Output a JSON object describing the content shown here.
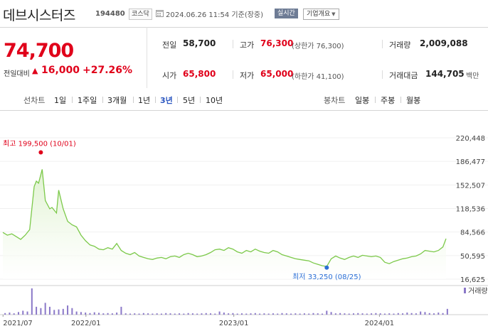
{
  "header": {
    "name": "데브시스터즈",
    "code": "194480",
    "market": "코스닥",
    "datetime": "2024.06.26 11:54 기준(장중)",
    "realtime": "실시간",
    "company_btn": "기업개요"
  },
  "quote": {
    "price": "74,700",
    "change_label": "전일대비",
    "change_arrow": "▲",
    "change_amount": "16,000",
    "change_pct": "+27.26%",
    "prev_close": {
      "label": "전일",
      "value": "58,700"
    },
    "high": {
      "label": "고가",
      "value": "76,300",
      "sub": "(상한가 76,300)"
    },
    "volume": {
      "label": "거래량",
      "value": "2,009,088"
    },
    "open": {
      "label": "시가",
      "value": "65,800"
    },
    "low": {
      "label": "저가",
      "value": "65,000",
      "sub": "(하한가 41,100)"
    },
    "amount": {
      "label": "거래대금",
      "value": "144,705",
      "unit": "백만"
    }
  },
  "tabs": {
    "line_label": "선차트",
    "line": [
      "1일",
      "1주일",
      "3개월",
      "1년",
      "3년",
      "5년",
      "10년"
    ],
    "active": "3년",
    "candle_label": "봉차트",
    "candle": [
      "일봉",
      "주봉",
      "월봉"
    ]
  },
  "colors": {
    "up": "#e0001a",
    "line": "#7cc94a",
    "fill": "#dff2cf",
    "volume": "#8a78c8",
    "low_marker": "#2b6fd6"
  },
  "chart_data": {
    "type": "area",
    "y_ticks": [
      "220,448",
      "186,477",
      "152,507",
      "118,536",
      "84,566",
      "50,595",
      "16,625"
    ],
    "ylim": [
      16625,
      220448
    ],
    "x_ticks": [
      "2021/07",
      "2022/01",
      "2023/01",
      "2024/01"
    ],
    "x_tick_positions": [
      0.04,
      18.6,
      51.7,
      84.3
    ],
    "max_label": "최고 199,500 (10/01)",
    "min_label": "최저 33,250 (08/25)",
    "max_point": {
      "t": 8.5,
      "v": 199500
    },
    "min_point": {
      "t": 72.5,
      "v": 33250
    },
    "series": [
      {
        "values": [
          [
            0,
            84000
          ],
          [
            1,
            80000
          ],
          [
            2,
            82000
          ],
          [
            3,
            78000
          ],
          [
            4,
            74000
          ],
          [
            5,
            80000
          ],
          [
            6,
            88000
          ],
          [
            7,
            150000
          ],
          [
            7.5,
            158000
          ],
          [
            8,
            155000
          ],
          [
            8.8,
            175000
          ],
          [
            9.5,
            130000
          ],
          [
            10.5,
            118000
          ],
          [
            11,
            120000
          ],
          [
            12,
            112000
          ],
          [
            12.5,
            145000
          ],
          [
            13.5,
            118000
          ],
          [
            14.5,
            100000
          ],
          [
            15.5,
            95000
          ],
          [
            16.5,
            92000
          ],
          [
            17.5,
            80000
          ],
          [
            18.5,
            72000
          ],
          [
            19.5,
            66000
          ],
          [
            20.5,
            64000
          ],
          [
            21.5,
            60000
          ],
          [
            22.5,
            59000
          ],
          [
            23.5,
            62000
          ],
          [
            24.5,
            60000
          ],
          [
            25.5,
            68000
          ],
          [
            26.5,
            58000
          ],
          [
            27.5,
            54000
          ],
          [
            28.5,
            52000
          ],
          [
            29.5,
            55000
          ],
          [
            30.5,
            50000
          ],
          [
            31.5,
            48000
          ],
          [
            32.5,
            46000
          ],
          [
            33.5,
            45000
          ],
          [
            34.5,
            47000
          ],
          [
            35.5,
            48000
          ],
          [
            36.5,
            46000
          ],
          [
            37.5,
            49000
          ],
          [
            38.5,
            50000
          ],
          [
            39.5,
            48000
          ],
          [
            40.5,
            52000
          ],
          [
            41.5,
            54000
          ],
          [
            42.5,
            52000
          ],
          [
            43.5,
            49000
          ],
          [
            44.5,
            50000
          ],
          [
            45.5,
            52000
          ],
          [
            46.5,
            55000
          ],
          [
            47.5,
            59000
          ],
          [
            48.5,
            60000
          ],
          [
            49.5,
            58000
          ],
          [
            50.5,
            62000
          ],
          [
            51.5,
            60000
          ],
          [
            52.5,
            56000
          ],
          [
            53.5,
            54000
          ],
          [
            54.5,
            58000
          ],
          [
            55.5,
            56000
          ],
          [
            56.5,
            60000
          ],
          [
            57.5,
            57000
          ],
          [
            58.5,
            55000
          ],
          [
            59.5,
            54000
          ],
          [
            60.5,
            58000
          ],
          [
            61.5,
            56000
          ],
          [
            62.5,
            52000
          ],
          [
            63.5,
            50000
          ],
          [
            64.5,
            48000
          ],
          [
            65.5,
            46000
          ],
          [
            66.5,
            45000
          ],
          [
            67.5,
            44000
          ],
          [
            68.5,
            43000
          ],
          [
            69.5,
            40000
          ],
          [
            70.5,
            38000
          ],
          [
            71.5,
            36000
          ],
          [
            72.5,
            35000
          ],
          [
            73.5,
            46000
          ],
          [
            74.5,
            50000
          ],
          [
            75.5,
            47000
          ],
          [
            76.5,
            45000
          ],
          [
            77.5,
            48000
          ],
          [
            78.5,
            50000
          ],
          [
            79.5,
            48000
          ],
          [
            80.5,
            51000
          ],
          [
            81.5,
            50000
          ],
          [
            82.5,
            49000
          ],
          [
            83.5,
            50000
          ],
          [
            84.5,
            48000
          ],
          [
            85.5,
            41000
          ],
          [
            86.5,
            39000
          ],
          [
            87.5,
            42000
          ],
          [
            88.5,
            44000
          ],
          [
            89.5,
            46000
          ],
          [
            90.5,
            47000
          ],
          [
            91.5,
            49000
          ],
          [
            92.5,
            50000
          ],
          [
            93.5,
            53000
          ],
          [
            94.5,
            58000
          ],
          [
            95.5,
            57000
          ],
          [
            96.5,
            56000
          ],
          [
            97.5,
            58000
          ],
          [
            98.5,
            63000
          ],
          [
            99.2,
            75000
          ]
        ]
      }
    ],
    "volume_label": "거래량",
    "volume_bars": [
      0.06,
      0.08,
      0.05,
      0.1,
      0.15,
      0.12,
      1.0,
      0.3,
      0.25,
      0.45,
      0.3,
      0.18,
      0.2,
      0.22,
      0.35,
      0.25,
      0.12,
      0.1,
      0.08,
      0.06,
      0.09,
      0.07,
      0.05,
      0.06,
      0.05,
      0.08,
      0.3,
      0.05,
      0.04,
      0.05,
      0.04,
      0.06,
      0.05,
      0.04,
      0.05,
      0.04,
      0.06,
      0.05,
      0.04,
      0.05,
      0.04,
      0.06,
      0.05,
      0.04,
      0.05,
      0.06,
      0.05,
      0.04,
      0.12,
      0.08,
      0.05,
      0.06,
      0.04,
      0.05,
      0.04,
      0.05,
      0.06,
      0.04,
      0.05,
      0.04,
      0.05,
      0.04,
      0.06,
      0.05,
      0.04,
      0.05,
      0.04,
      0.05,
      0.04,
      0.06,
      0.05,
      0.04,
      0.15,
      0.1,
      0.05,
      0.06,
      0.05,
      0.04,
      0.05,
      0.06,
      0.05,
      0.04,
      0.05,
      0.06,
      0.05,
      0.04,
      0.05,
      0.04,
      0.06,
      0.05,
      0.08,
      0.06,
      0.05,
      0.12,
      0.1,
      0.06,
      0.05,
      0.08,
      0.06,
      0.22
    ]
  }
}
